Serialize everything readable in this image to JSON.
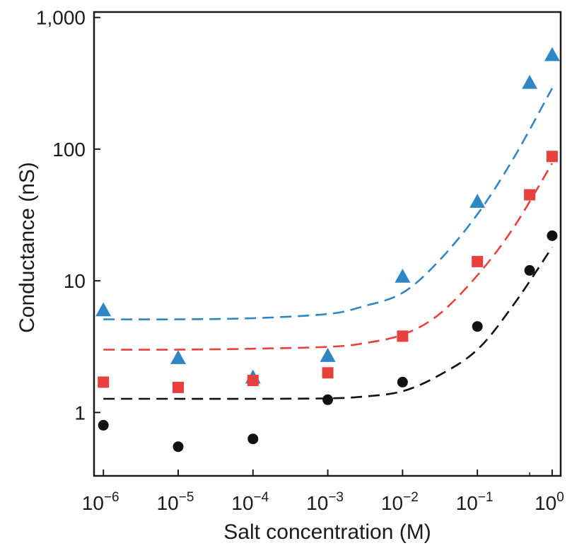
{
  "chart_data": {
    "type": "scatter",
    "title": "",
    "xlabel": "Salt concentration (M)",
    "ylabel": "Conductance (nS)",
    "xscale": "log",
    "yscale": "log",
    "xlim": [
      7.5e-07,
      1.3
    ],
    "ylim": [
      0.33,
      1100
    ],
    "grid": false,
    "legend": "none",
    "x_ticks": [
      {
        "value": 1e-06,
        "base": "10",
        "exp": "−6"
      },
      {
        "value": 1e-05,
        "base": "10",
        "exp": "−5"
      },
      {
        "value": 0.0001,
        "base": "10",
        "exp": "−4"
      },
      {
        "value": 0.001,
        "base": "10",
        "exp": "−3"
      },
      {
        "value": 0.01,
        "base": "10",
        "exp": "−2"
      },
      {
        "value": 0.1,
        "base": "10",
        "exp": "−1"
      },
      {
        "value": 1,
        "base": "10",
        "exp": "0"
      }
    ],
    "y_ticks": [
      {
        "value": 1,
        "label": "1"
      },
      {
        "value": 10,
        "label": "10"
      },
      {
        "value": 100,
        "label": "100"
      },
      {
        "value": 1000,
        "label": "1,000"
      }
    ],
    "series": [
      {
        "marker": "triangle",
        "color": "#2f86c4",
        "x": [
          1e-06,
          1e-05,
          0.0001,
          0.001,
          0.01,
          0.1,
          0.5,
          1
        ],
        "y": [
          6.0,
          2.6,
          1.85,
          2.7,
          10.8,
          40,
          320,
          520
        ],
        "fit_x": [
          1e-06,
          1e-05,
          0.0001,
          0.001,
          0.003,
          0.01,
          0.03,
          0.1,
          0.3,
          1
        ],
        "fit_y": [
          5.1,
          5.1,
          5.2,
          5.6,
          6.4,
          8.1,
          14,
          32,
          84,
          290
        ]
      },
      {
        "marker": "square",
        "color": "#e8403c",
        "x": [
          1e-06,
          1e-05,
          0.0001,
          0.001,
          0.01,
          0.1,
          0.5,
          1
        ],
        "y": [
          1.7,
          1.55,
          1.75,
          2.0,
          3.8,
          14,
          45,
          88
        ],
        "fit_x": [
          1e-06,
          1e-05,
          0.0001,
          0.001,
          0.003,
          0.01,
          0.03,
          0.1,
          0.3,
          1
        ],
        "fit_y": [
          3.0,
          3.0,
          3.05,
          3.15,
          3.35,
          3.9,
          5.5,
          11,
          25,
          78
        ]
      },
      {
        "marker": "circle",
        "color": "#111111",
        "x": [
          1e-06,
          1e-05,
          0.0001,
          0.001,
          0.01,
          0.1,
          0.5,
          1
        ],
        "y": [
          0.8,
          0.55,
          0.63,
          1.25,
          1.7,
          4.5,
          12,
          22
        ],
        "fit_x": [
          1e-06,
          1e-05,
          0.0001,
          0.001,
          0.003,
          0.01,
          0.03,
          0.1,
          0.3,
          1
        ],
        "fit_y": [
          1.27,
          1.27,
          1.27,
          1.28,
          1.32,
          1.45,
          1.9,
          3.0,
          6.5,
          18
        ]
      }
    ]
  }
}
